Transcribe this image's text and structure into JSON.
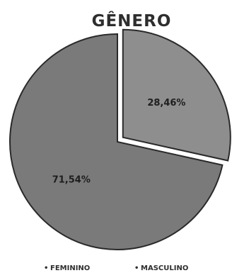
{
  "chart_data": {
    "type": "pie",
    "title": "GÊNERO",
    "slices": [
      {
        "name": "FEMININO",
        "value": 71.54,
        "label": "71,54%",
        "color": "#7a7a7a"
      },
      {
        "name": "MASCULINO",
        "value": 28.46,
        "label": "28,46%",
        "color": "#8e8e8e",
        "exploded": true
      }
    ],
    "legend_position": "bottom",
    "legend_marker": "•"
  }
}
